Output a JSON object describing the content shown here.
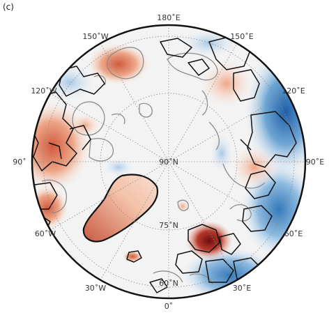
{
  "panel_label": "(c)",
  "projection": "north polar stereographic",
  "colors": {
    "ocean": "#f2f2f2",
    "warm_light": "#f6c7b0",
    "warm_mid": "#e58f6f",
    "warm_strong": "#c84b33",
    "warm_dark": "#7a1414",
    "cool_light": "#cfe0f0",
    "cool_mid": "#7fb1d9",
    "cool_strong": "#2c6fb2",
    "grid": "#888888",
    "border": "#111111",
    "contour": "#8c8c8c"
  },
  "labels": {
    "lon_180": "180˚E",
    "lon_150w": "150˚W",
    "lon_150e": "150˚E",
    "lon_120w": "120˚W",
    "lon_120e": "120˚E",
    "lon_90w": "90˚",
    "lon_90e": "90˚E",
    "lon_60w": "60˚W",
    "lon_60e": "60˚E",
    "lon_30w": "30˚W",
    "lon_30e": "30˚E",
    "lon_0": "0˚",
    "lat_90": "90˚N",
    "lat_75": "75˚N",
    "lat_60": "60˚N"
  }
}
